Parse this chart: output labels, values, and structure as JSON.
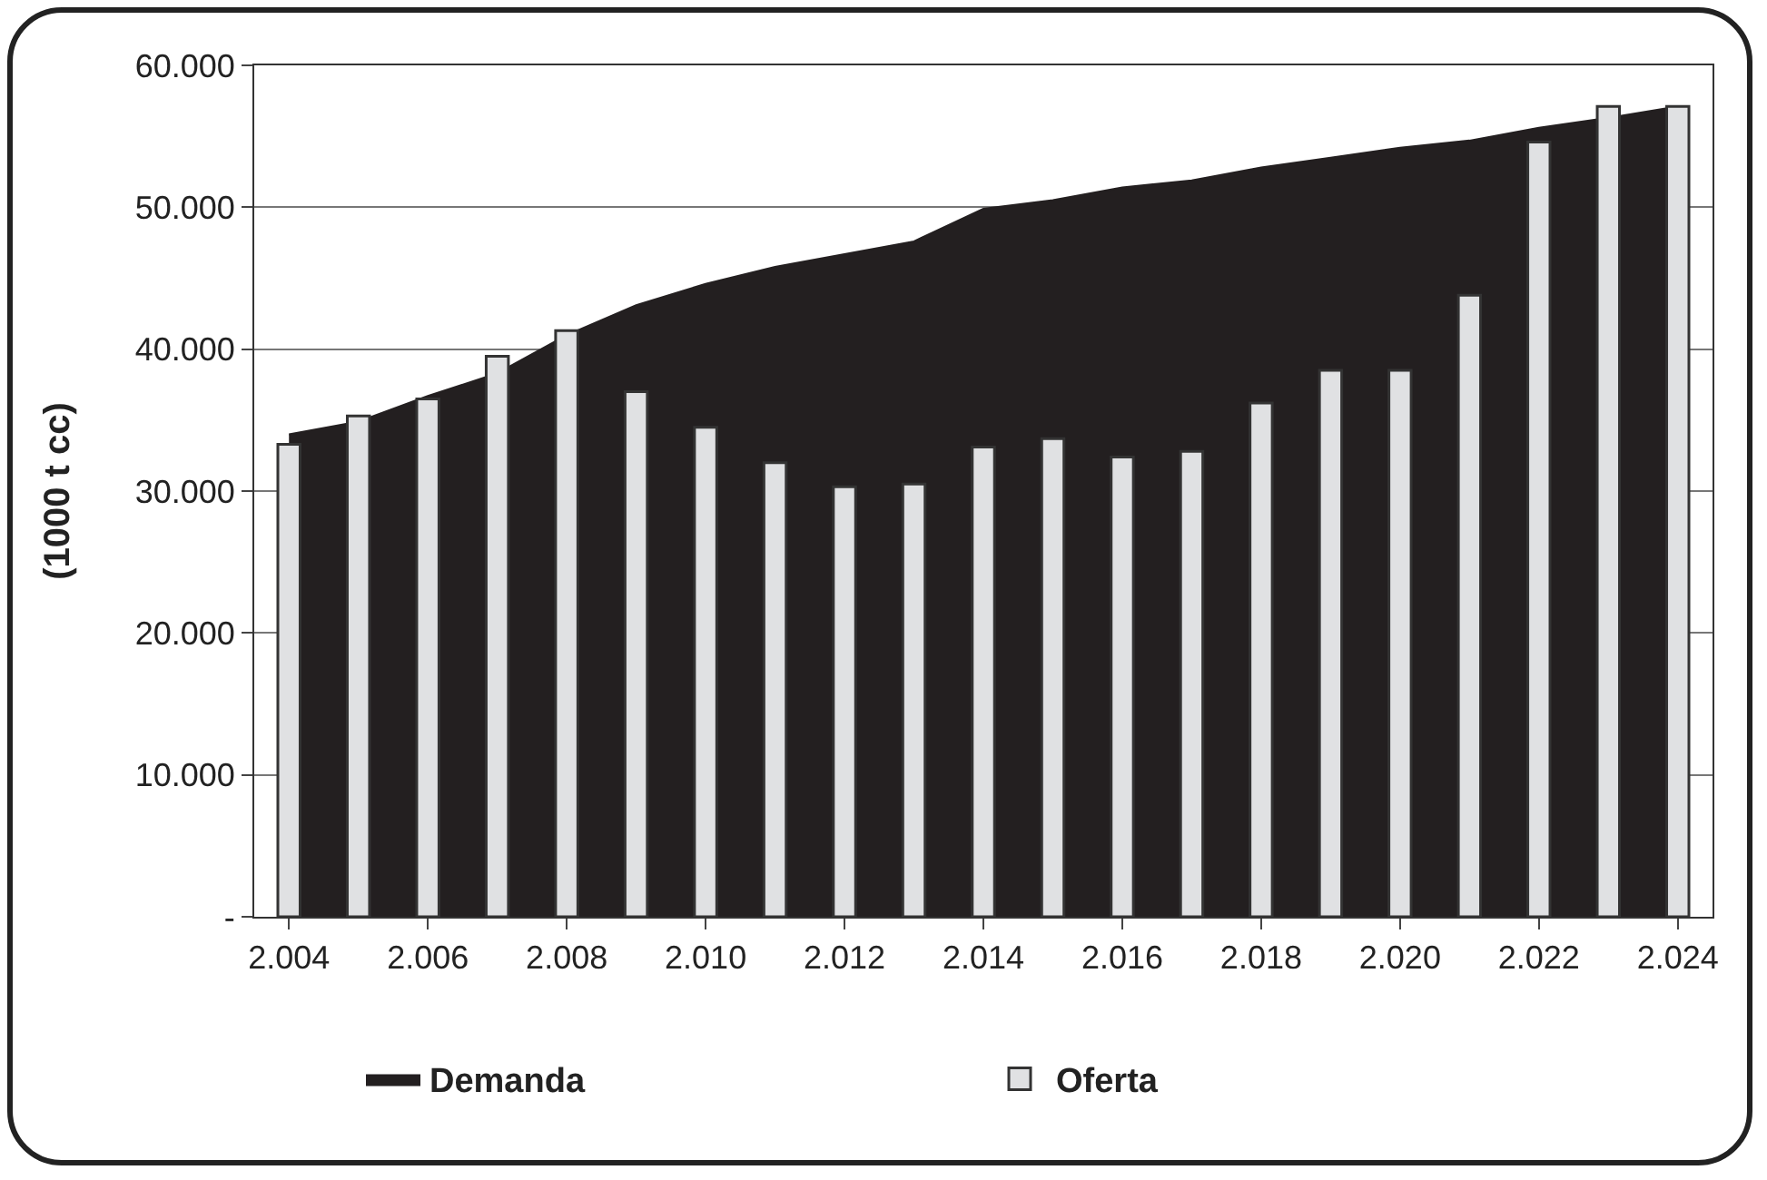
{
  "chart_data": {
    "type": "bar",
    "ylabel": "(1000 t cc)",
    "categories": [
      "2.004",
      null,
      "2.006",
      null,
      "2.008",
      null,
      "2.010",
      null,
      "2.012",
      null,
      "2.014",
      null,
      "2.016",
      null,
      "2.018",
      null,
      "2.020",
      null,
      "2.022",
      null,
      "2.024"
    ],
    "series": [
      {
        "name": "Demanda",
        "type": "area",
        "color": "#231f20",
        "values": [
          34000,
          34900,
          36700,
          38300,
          41000,
          43100,
          44600,
          45800,
          46700,
          47600,
          49900,
          50500,
          51400,
          51900,
          52800,
          53500,
          54200,
          54700,
          55600,
          56300,
          57100
        ]
      },
      {
        "name": "Oferta",
        "color": "#e0e1e3",
        "values": [
          33300,
          35300,
          36500,
          39500,
          41300,
          37000,
          34500,
          32000,
          30300,
          30500,
          33100,
          33700,
          32400,
          32800,
          36200,
          38500,
          38500,
          43800,
          54600,
          57100,
          57100
        ]
      }
    ],
    "ylim": [
      0,
      60000
    ],
    "yticks": [
      {
        "value": 0,
        "label": "-"
      },
      {
        "value": 10000,
        "label": "10.000"
      },
      {
        "value": 20000,
        "label": "20.000"
      },
      {
        "value": 30000,
        "label": "30.000"
      },
      {
        "value": 40000,
        "label": "40.000"
      },
      {
        "value": 50000,
        "label": "50.000"
      },
      {
        "value": 60000,
        "label": "60.000"
      }
    ],
    "grid": "y",
    "legend": "bottom"
  }
}
